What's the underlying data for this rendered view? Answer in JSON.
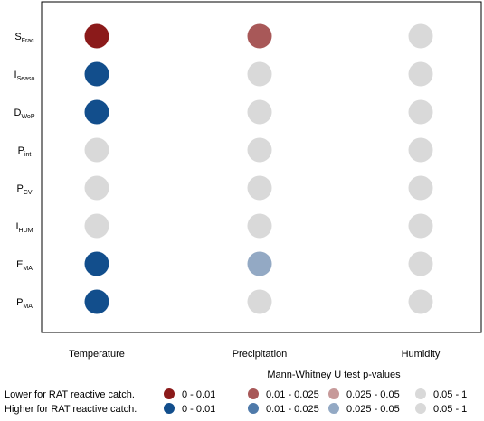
{
  "chart_data": {
    "type": "scatter",
    "title": "",
    "xlabel": "",
    "ylabel": "",
    "grid": false,
    "x_categories": [
      "Temperature",
      "Precipitation",
      "Humidity"
    ],
    "y_categories": [
      {
        "main": "S",
        "sub": "Frac"
      },
      {
        "main": "I",
        "sub": "Seaso"
      },
      {
        "main": "D",
        "sub": "WoP"
      },
      {
        "main": "P",
        "sub": "int"
      },
      {
        "main": "P",
        "sub": "CV"
      },
      {
        "main": "I",
        "sub": "HUM"
      },
      {
        "main": "E",
        "sub": "MA"
      },
      {
        "main": "P",
        "sub": "MA"
      }
    ],
    "cells": [
      [
        "lower_0_0.01",
        "lower_0.01_0.025",
        "ns"
      ],
      [
        "higher_0_0.01",
        "ns",
        "ns"
      ],
      [
        "higher_0_0.01",
        "ns",
        "ns"
      ],
      [
        "ns",
        "ns",
        "ns"
      ],
      [
        "ns",
        "ns",
        "ns"
      ],
      [
        "ns",
        "ns",
        "ns"
      ],
      [
        "higher_0_0.01",
        "higher_0.025_0.05",
        "ns"
      ],
      [
        "higher_0_0.01",
        "ns",
        "ns"
      ]
    ],
    "categories": {
      "lower_0_0.01": "#8b1a1a",
      "lower_0.01_0.025": "#a85858",
      "lower_0.025_0.05": "#c79a9a",
      "higher_0_0.01": "#124e8c",
      "higher_0.01_0.025": "#4f7aaa",
      "higher_0.025_0.05": "#93a9c4",
      "ns": "#d9d9d9"
    },
    "legend": {
      "title": "Mann-Whitney U test p-values",
      "row_labels": [
        "Lower for RAT reactive catch.",
        "Higher for RAT reactive catch."
      ],
      "rows": [
        [
          {
            "key": "lower_0_0.01",
            "label": "0 - 0.01"
          },
          {
            "key": "lower_0.01_0.025",
            "label": "0.01 - 0.025"
          },
          {
            "key": "lower_0.025_0.05",
            "label": "0.025 - 0.05"
          },
          {
            "key": "ns",
            "label": "0.05 - 1"
          }
        ],
        [
          {
            "key": "higher_0_0.01",
            "label": "0 - 0.01"
          },
          {
            "key": "higher_0.01_0.025",
            "label": "0.01 - 0.025"
          },
          {
            "key": "higher_0.025_0.05",
            "label": "0.025 - 0.05"
          },
          {
            "key": "ns",
            "label": "0.05 - 1"
          }
        ]
      ]
    }
  }
}
